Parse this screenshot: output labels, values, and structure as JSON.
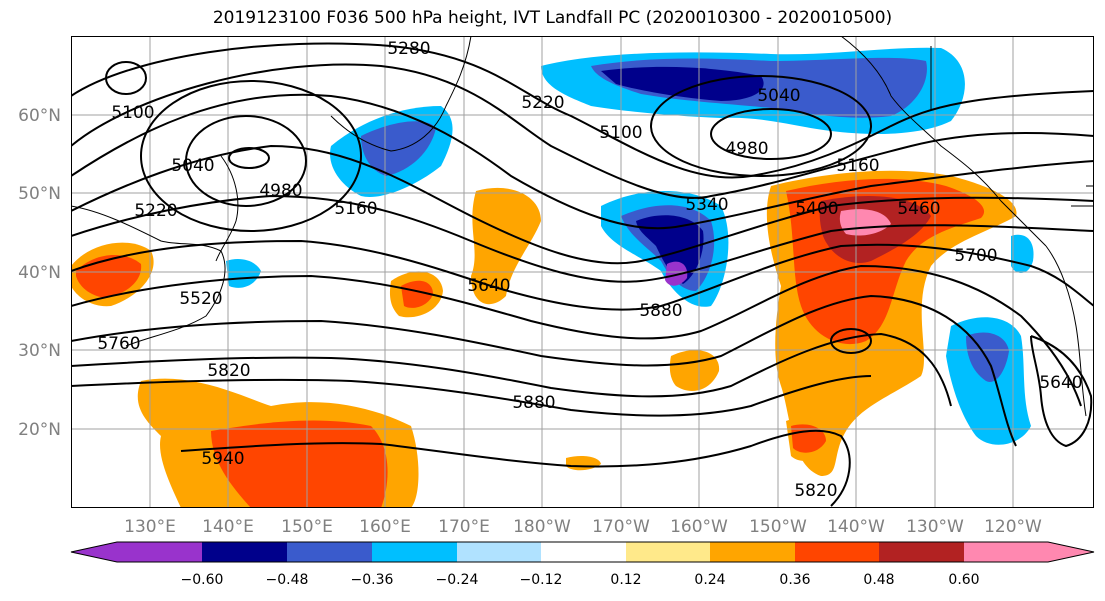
{
  "title": "2019123100 F036 500 hPa height, IVT Landfall PC (2020010300 - 2020010500)",
  "lat_labels": [
    "60°N",
    "50°N",
    "40°N",
    "30°N",
    "20°N"
  ],
  "lat_values": [
    60,
    50,
    40,
    30,
    20
  ],
  "lon_labels": [
    "130°E",
    "140°E",
    "150°E",
    "160°E",
    "170°E",
    "180°W",
    "170°W",
    "160°W",
    "150°W",
    "140°W",
    "130°W",
    "120°W"
  ],
  "contour_labels": [
    "5280",
    "5100",
    "5040",
    "4980",
    "5220",
    "5100",
    "5040",
    "4980",
    "5220",
    "5160",
    "5160",
    "5340",
    "5400",
    "5460",
    "5700",
    "5520",
    "5640",
    "5880",
    "5760",
    "5820",
    "5880",
    "5940",
    "5820",
    "5640"
  ],
  "colorbar": {
    "tick_labels": [
      "−0.60",
      "−0.48",
      "−0.36",
      "−0.24",
      "−0.12",
      "0.12",
      "0.24",
      "0.36",
      "0.48",
      "0.60"
    ],
    "colors": [
      "#9933cc",
      "#00008b",
      "#3a5bcc",
      "#00bfff",
      "#b0e2ff",
      "#ffffff",
      "#ffe98a",
      "#ffa500",
      "#ff4500",
      "#b22222",
      "#ff88b0"
    ]
  },
  "colors": {
    "coast": "#000000",
    "contour": "#000000",
    "grid": "#a0a0a0"
  }
}
